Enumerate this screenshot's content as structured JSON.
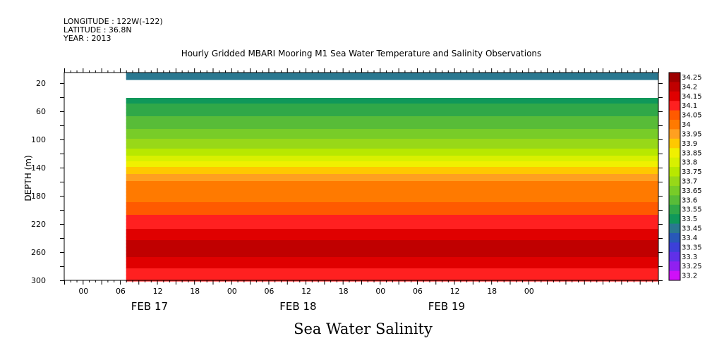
{
  "header": {
    "longitude": "LONGITUDE : 122W(-122)",
    "latitude": "LATITUDE : 36.8N",
    "year": "YEAR : 2013"
  },
  "title": "Hourly Gridded MBARI Mooring M1 Sea Water Temperature and Salinity Observations",
  "bottom_title": "Sea Water Salinity",
  "chart_data": {
    "type": "heatmap",
    "title": "Hourly Gridded MBARI Mooring M1 Sea Water Temperature and Salinity Observations",
    "xlabel": "",
    "ylabel": "DEPTH (m)",
    "x_tick_labels": [
      "00",
      "06",
      "12",
      "18",
      "00",
      "06",
      "12",
      "18",
      "00",
      "06",
      "12",
      "18",
      "00"
    ],
    "x_day_labels": [
      "FEB 17",
      "FEB 18",
      "FEB 19"
    ],
    "x_range_hours": [
      -3,
      93
    ],
    "data_start_hour": 7,
    "y_tick_labels": [
      "20",
      "60",
      "100",
      "140",
      "180",
      "220",
      "260",
      "300"
    ],
    "ylim": [
      300,
      5
    ],
    "no_data_depth_range": [
      15,
      40
    ],
    "colorbar": {
      "levels": [
        "34.25",
        "34.2",
        "34.15",
        "34.1",
        "34.05",
        "34",
        "33.95",
        "33.9",
        "33.85",
        "33.8",
        "33.75",
        "33.7",
        "33.65",
        "33.6",
        "33.55",
        "33.5",
        "33.45",
        "33.4",
        "33.35",
        "33.3",
        "33.25",
        "33.2"
      ],
      "colors": [
        "#9e0000",
        "#c00000",
        "#e00000",
        "#ff2020",
        "#ff5a00",
        "#ff7a00",
        "#ffa020",
        "#ffc800",
        "#f0f000",
        "#d8f000",
        "#b8e800",
        "#98d818",
        "#78cc28",
        "#58bc38",
        "#30a848",
        "#10985a",
        "#2a7890",
        "#2858b8",
        "#3c40d8",
        "#6030e8",
        "#9020f0",
        "#d010f8"
      ]
    },
    "profile": [
      {
        "depth": 5,
        "value": 33.47
      },
      {
        "depth": 40,
        "value": 33.52
      },
      {
        "depth": 60,
        "value": 33.58
      },
      {
        "depth": 80,
        "value": 33.63
      },
      {
        "depth": 100,
        "value": 33.7
      },
      {
        "depth": 115,
        "value": 33.76
      },
      {
        "depth": 130,
        "value": 33.84
      },
      {
        "depth": 145,
        "value": 33.93
      },
      {
        "depth": 160,
        "value": 34.0
      },
      {
        "depth": 180,
        "value": 34.02
      },
      {
        "depth": 200,
        "value": 34.08
      },
      {
        "depth": 220,
        "value": 34.13
      },
      {
        "depth": 240,
        "value": 34.19
      },
      {
        "depth": 255,
        "value": 34.23
      },
      {
        "depth": 270,
        "value": 34.19
      },
      {
        "depth": 285,
        "value": 34.14
      },
      {
        "depth": 300,
        "value": 34.1
      }
    ]
  }
}
